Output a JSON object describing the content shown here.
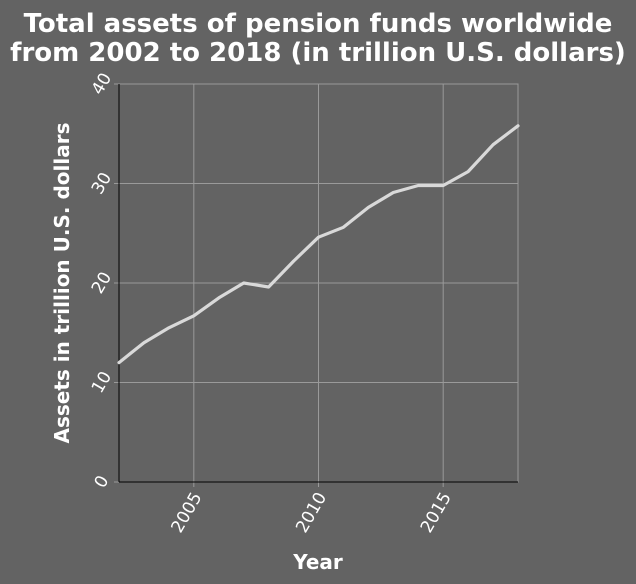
{
  "chart_data": {
    "type": "line",
    "title_lines": [
      "Total assets of pension funds worldwide",
      "from 2002 to 2018 (in trillion U.S. dollars)"
    ],
    "xlabel": "Year",
    "ylabel": "Assets in trillion U.S. dollars",
    "xlim": [
      2002,
      2018
    ],
    "ylim": [
      0,
      40
    ],
    "x_ticks": [
      2005,
      2010,
      2015
    ],
    "y_ticks": [
      0,
      10,
      20,
      30,
      40
    ],
    "grid": true,
    "colors": {
      "background": "#636363",
      "grid": "#9a9a9a",
      "line": "#d9d9d9",
      "text": "#ffffff"
    },
    "series": [
      {
        "x": [
          2002,
          2003,
          2004,
          2005,
          2006,
          2007,
          2008,
          2009,
          2010,
          2011,
          2012,
          2013,
          2014,
          2015,
          2016,
          2017,
          2018
        ],
        "values": [
          12.0,
          14.0,
          15.5,
          16.7,
          18.5,
          20.0,
          19.6,
          22.2,
          24.6,
          25.6,
          27.6,
          29.1,
          29.8,
          29.8,
          31.2,
          33.9,
          35.8
        ]
      }
    ]
  }
}
